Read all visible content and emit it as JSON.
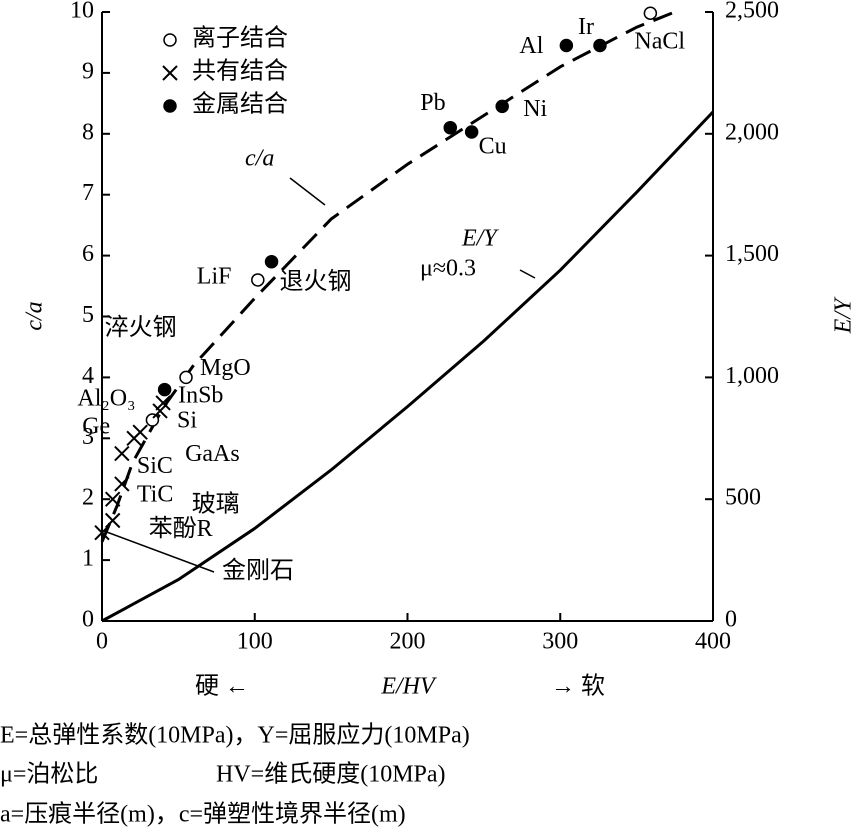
{
  "chart_data": {
    "type": "scatter",
    "xlim": [
      0,
      400
    ],
    "xticks": [
      0,
      100,
      200,
      300,
      400
    ],
    "ylim": [
      0,
      10
    ],
    "yticks": [
      0,
      1,
      2,
      3,
      4,
      5,
      6,
      7,
      8,
      9,
      10
    ],
    "y2lim": [
      0,
      2500
    ],
    "y2ticks": [
      0,
      500,
      {
        "value": 1000,
        "label": "1,000"
      },
      {
        "value": 1500,
        "label": "1,500"
      },
      {
        "value": 2000,
        "label": "2,000"
      },
      {
        "value": 2500,
        "label": "2,500"
      }
    ],
    "ylabel": "c/a",
    "y2label": "E/Y",
    "xlabel": "E/HV",
    "xlabel_left": "硬 ←",
    "xlabel_right": "→ 软",
    "color": "#000000",
    "series": [
      {
        "name": "离子结合",
        "marker": "open-circle",
        "x": [
          359,
          102,
          55,
          33
        ],
        "y": [
          9.98,
          5.6,
          4.0,
          3.3
        ],
        "labels": [
          "NaCl",
          "LiF",
          "MgO",
          "Al₂O₃"
        ]
      },
      {
        "name": "共有结合",
        "marker": "cross",
        "x": [
          40,
          38,
          25,
          21,
          13,
          13,
          7,
          7,
          0
        ],
        "y": [
          3.58,
          3.45,
          3.1,
          3.0,
          2.75,
          2.25,
          2.0,
          1.65,
          1.45
        ],
        "labels": [
          "InSb",
          "Si",
          "Ge",
          "GaAs",
          "SiC",
          "TiC",
          "玻璃",
          "苯酚R",
          "金刚石"
        ]
      },
      {
        "name": "金属结合",
        "marker": "filled-circle",
        "x": [
          304,
          326,
          228,
          242,
          262,
          111,
          41
        ],
        "y": [
          9.45,
          9.45,
          8.1,
          8.03,
          8.45,
          5.9,
          3.8
        ],
        "labels": [
          "Al",
          "Ir",
          "Pb",
          "Cu",
          "Ni",
          "退火钢",
          "淬火钢"
        ]
      }
    ],
    "lines": [
      {
        "name": "c/a",
        "axis": "y",
        "dashed": true,
        "x": [
          0,
          10,
          20,
          40,
          60,
          100,
          150,
          200,
          250,
          300,
          350,
          375
        ],
        "y": [
          1.3,
          1.9,
          2.6,
          3.5,
          4.2,
          5.3,
          6.6,
          7.5,
          8.3,
          9.1,
          9.75,
          10.0
        ]
      },
      {
        "name": "E/Y",
        "axis": "y2",
        "dashed": false,
        "note": "μ≈0.3",
        "x": [
          0,
          50,
          100,
          150,
          200,
          250,
          300,
          350,
          400
        ],
        "y": [
          0,
          170,
          380,
          620,
          880,
          1150,
          1440,
          1760,
          2090
        ]
      }
    ],
    "footnotes": [
      "E=总弹性系数(10MPa)，Y=屈服应力(10MPa)",
      "μ=泊松比",
      "HV=维氏硬度(10MPa)",
      "a=压痕半径(m)，c=弹塑性境界半径(m)"
    ]
  }
}
